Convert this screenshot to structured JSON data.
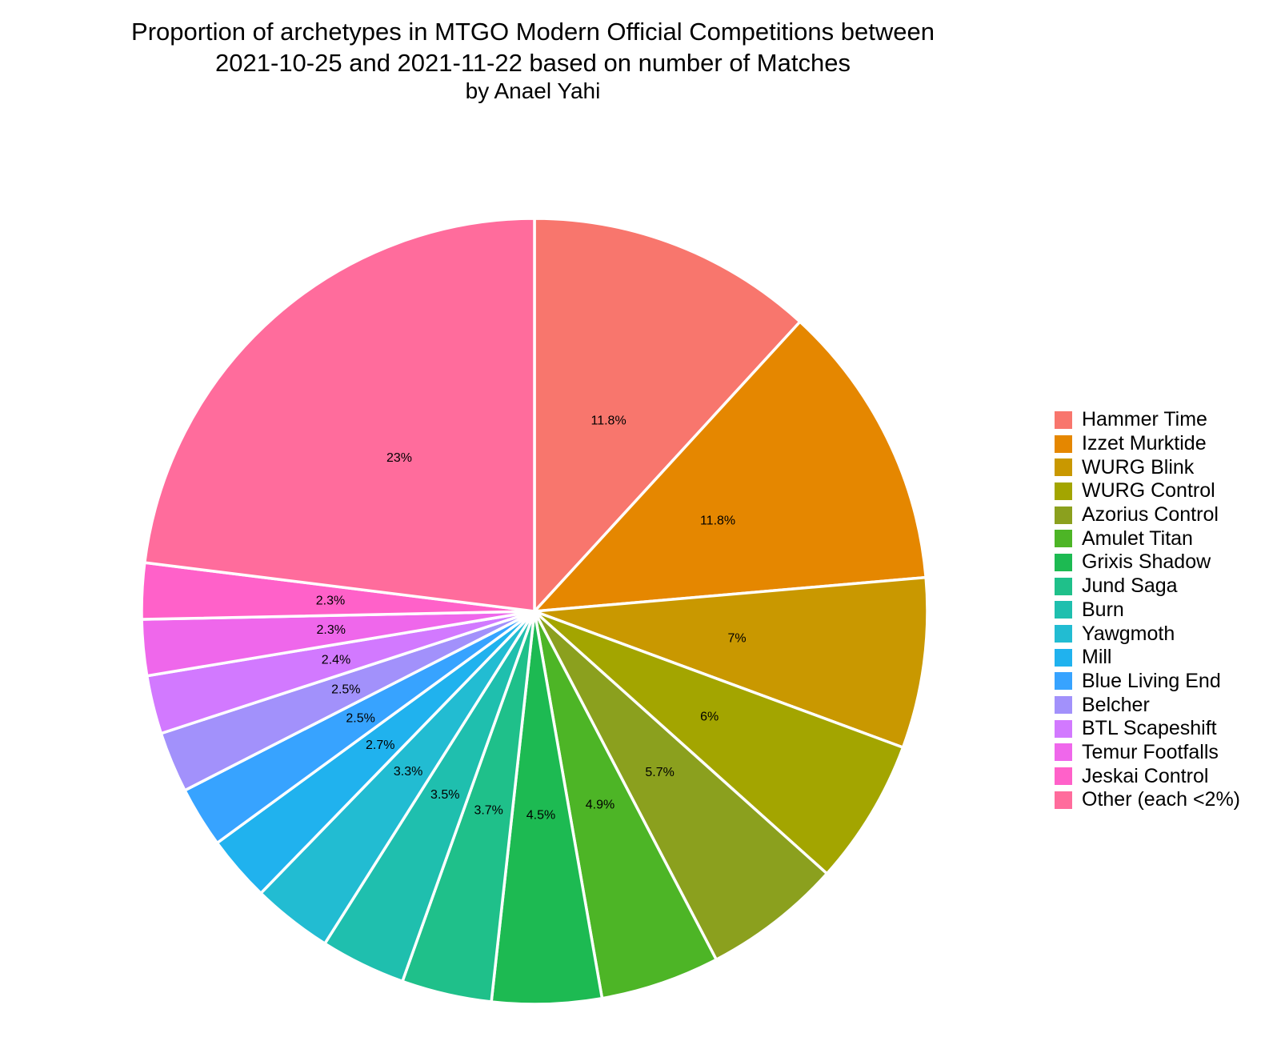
{
  "chart_data": {
    "type": "pie",
    "title": [
      "Proportion of archetypes in MTGO Modern Official Competitions between",
      "2021-10-25 and 2021-11-22 based on number of Matches"
    ],
    "subtitle": "by Anael Yahi",
    "legend_position": "right",
    "direction": "clockwise from top",
    "slices": [
      {
        "name": "Hammer Time",
        "value": 11.8,
        "label": "11.8%",
        "color": "#F8766D"
      },
      {
        "name": "Izzet Murktide",
        "value": 11.8,
        "label": "11.8%",
        "color": "#E58700"
      },
      {
        "name": "WURG Blink",
        "value": 7.0,
        "label": "7%",
        "color": "#C99800"
      },
      {
        "name": "WURG Control",
        "value": 6.0,
        "label": "6%",
        "color": "#A3A500"
      },
      {
        "name": "Azorius Control",
        "value": 5.7,
        "label": "5.7%",
        "color": "#8BA01E"
      },
      {
        "name": "Amulet Titan",
        "value": 4.9,
        "label": "4.9%",
        "color": "#4DB526"
      },
      {
        "name": "Grixis Shadow",
        "value": 4.5,
        "label": "4.5%",
        "color": "#1DBA52"
      },
      {
        "name": "Jund Saga",
        "value": 3.7,
        "label": "3.7%",
        "color": "#1FC08A"
      },
      {
        "name": "Burn",
        "value": 3.5,
        "label": "3.5%",
        "color": "#1FBFAE"
      },
      {
        "name": "Yawgmoth",
        "value": 3.3,
        "label": "3.3%",
        "color": "#22BCD2"
      },
      {
        "name": "Mill",
        "value": 2.7,
        "label": "2.7%",
        "color": "#20B2EE"
      },
      {
        "name": "Blue Living End",
        "value": 2.5,
        "label": "2.5%",
        "color": "#37A3FF"
      },
      {
        "name": "Belcher",
        "value": 2.5,
        "label": "2.5%",
        "color": "#A291FB"
      },
      {
        "name": "BTL Scapeshift",
        "value": 2.4,
        "label": "2.4%",
        "color": "#D279FF"
      },
      {
        "name": "Temur Footfalls",
        "value": 2.3,
        "label": "2.3%",
        "color": "#EF67EB"
      },
      {
        "name": "Jeskai Control",
        "value": 2.3,
        "label": "2.3%",
        "color": "#FF61C9"
      },
      {
        "name": "Other (each <2%)",
        "value": 23.0,
        "label": "23%",
        "color": "#FF6C9C"
      }
    ]
  }
}
